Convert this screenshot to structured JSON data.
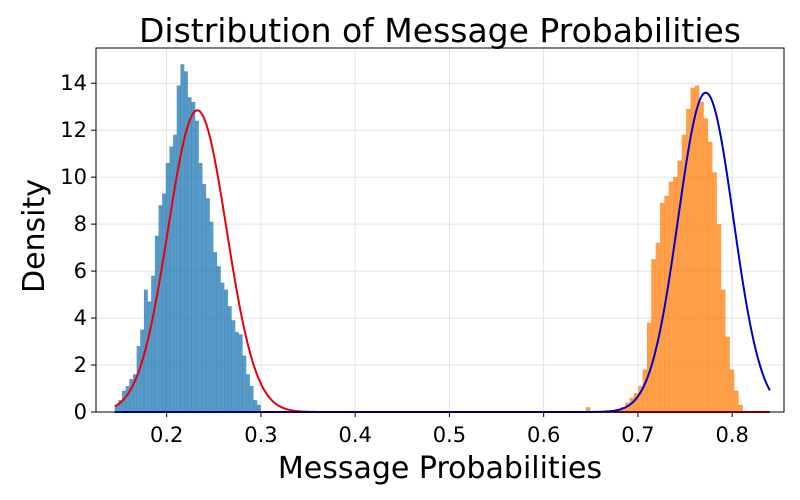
{
  "chart_data": {
    "type": "histogram",
    "title": "Distribution of Message Probabilities",
    "xlabel": "Message Probabilities",
    "ylabel": "Density",
    "xlim": [
      0.125,
      0.855
    ],
    "ylim": [
      0,
      15.5
    ],
    "xticks": [
      {
        "value": 0.2,
        "label": "0.2"
      },
      {
        "value": 0.3,
        "label": "0.3"
      },
      {
        "value": 0.4,
        "label": "0.4"
      },
      {
        "value": 0.5,
        "label": "0.5"
      },
      {
        "value": 0.6,
        "label": "0.6"
      },
      {
        "value": 0.7,
        "label": "0.7"
      },
      {
        "value": 0.8,
        "label": "0.8"
      }
    ],
    "yticks": [
      {
        "value": 0,
        "label": "0"
      },
      {
        "value": 2,
        "label": "2"
      },
      {
        "value": 4,
        "label": "4"
      },
      {
        "value": 6,
        "label": "6"
      },
      {
        "value": 8,
        "label": "8"
      },
      {
        "value": 10,
        "label": "10"
      },
      {
        "value": 12,
        "label": "12"
      },
      {
        "value": 14,
        "label": "14"
      }
    ],
    "grid": true,
    "series": [
      {
        "kind": "bars",
        "color": "#1f77b4",
        "bin_start": 0.145,
        "bin_width": 0.00387,
        "values": [
          0.3,
          0.5,
          0.9,
          1.1,
          1.4,
          1.6,
          2.8,
          3.5,
          5.2,
          4.7,
          5.8,
          7.5,
          8.8,
          9.3,
          10.6,
          11.3,
          11.8,
          13.9,
          14.8,
          14.5,
          13.4,
          13.2,
          12.4,
          10.6,
          9.7,
          9.1,
          8.1,
          6.8,
          6.2,
          5.5,
          5.2,
          4.5,
          3.9,
          3.4,
          3.3,
          2.4,
          1.6,
          1.1,
          0.5,
          0.3
        ],
        "opacity": 0.75
      },
      {
        "kind": "bars",
        "color": "#ff7f0e",
        "bin_start": 0.645,
        "bin_width": 0.00462,
        "values": [
          0.2,
          0.0,
          0.0,
          0.0,
          0.0,
          0.0,
          0.0,
          0.1,
          0.2,
          0.4,
          0.6,
          0.8,
          1.1,
          1.8,
          3.8,
          6.5,
          7.2,
          8.9,
          9.2,
          9.8,
          10.0,
          10.7,
          11.8,
          12.9,
          13.8,
          13.9,
          13.2,
          12.5,
          11.5,
          10.2,
          8.0,
          5.2,
          3.2,
          1.8,
          0.9,
          0.3
        ],
        "opacity": 0.75
      },
      {
        "kind": "curve",
        "color": "#e8000b",
        "mean": 0.2325,
        "std": 0.031,
        "peak": 12.85,
        "x_range": [
          0.145,
          0.84
        ]
      },
      {
        "kind": "curve",
        "color": "#0000cc",
        "mean": 0.772,
        "std": 0.0293,
        "peak": 13.6,
        "x_range": [
          0.145,
          0.84
        ]
      }
    ]
  }
}
